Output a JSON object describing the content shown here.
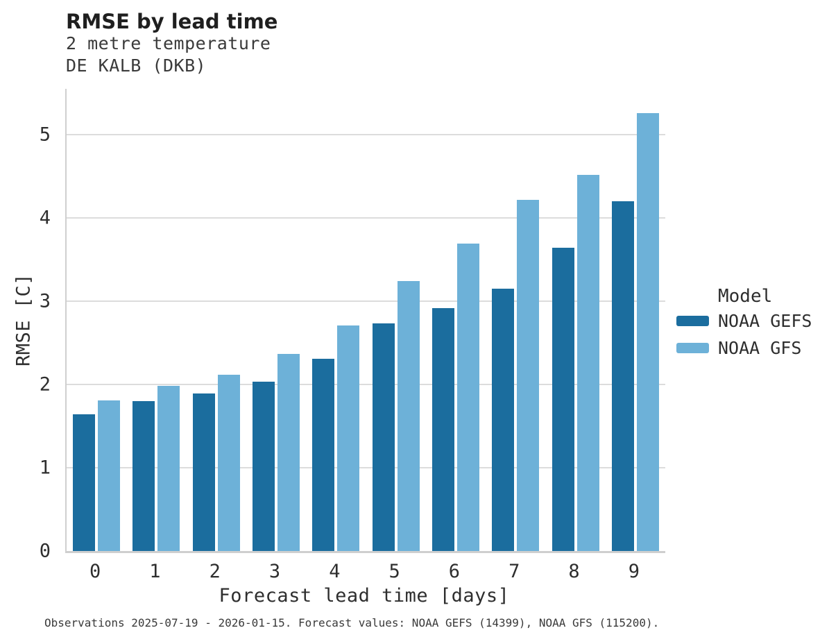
{
  "header": {
    "title": "RMSE by lead time",
    "subtitle_line1": "2 metre temperature",
    "subtitle_line2": "DE KALB (DKB)"
  },
  "chart_data": {
    "type": "bar",
    "title": "RMSE by lead time",
    "subtitle": [
      "2 metre temperature",
      "DE KALB (DKB)"
    ],
    "categories": [
      "0",
      "1",
      "2",
      "3",
      "4",
      "5",
      "6",
      "7",
      "8",
      "9"
    ],
    "series": [
      {
        "name": "NOAA GEFS",
        "color": "#1b6d9e",
        "values": [
          1.64,
          1.8,
          1.89,
          2.03,
          2.31,
          2.73,
          2.92,
          3.15,
          3.64,
          4.2
        ]
      },
      {
        "name": "NOAA GFS",
        "color": "#6db1d8",
        "values": [
          1.81,
          1.98,
          2.12,
          2.37,
          2.71,
          3.24,
          3.69,
          4.22,
          4.52,
          5.26
        ]
      }
    ],
    "xlabel": "Forecast lead time [days]",
    "ylabel": "RMSE [C]",
    "ylim": [
      0,
      5.55
    ],
    "yticks": [
      0,
      1,
      2,
      3,
      4,
      5
    ],
    "grid": true,
    "legend_title": "Model",
    "legend_position": "right"
  },
  "legend": {
    "title": "Model",
    "items": [
      {
        "label": "NOAA GEFS",
        "color": "#1b6d9e"
      },
      {
        "label": "NOAA GFS",
        "color": "#6db1d8"
      }
    ]
  },
  "footer": {
    "note": "Observations 2025-07-19 - 2026-01-15. Forecast values: NOAA GEFS (14399), NOAA GFS (115200)."
  },
  "colors": {
    "gefs": "#1b6d9e",
    "gfs": "#6db1d8",
    "grid": "#dcdcdc",
    "spine": "#cfcfcf"
  }
}
